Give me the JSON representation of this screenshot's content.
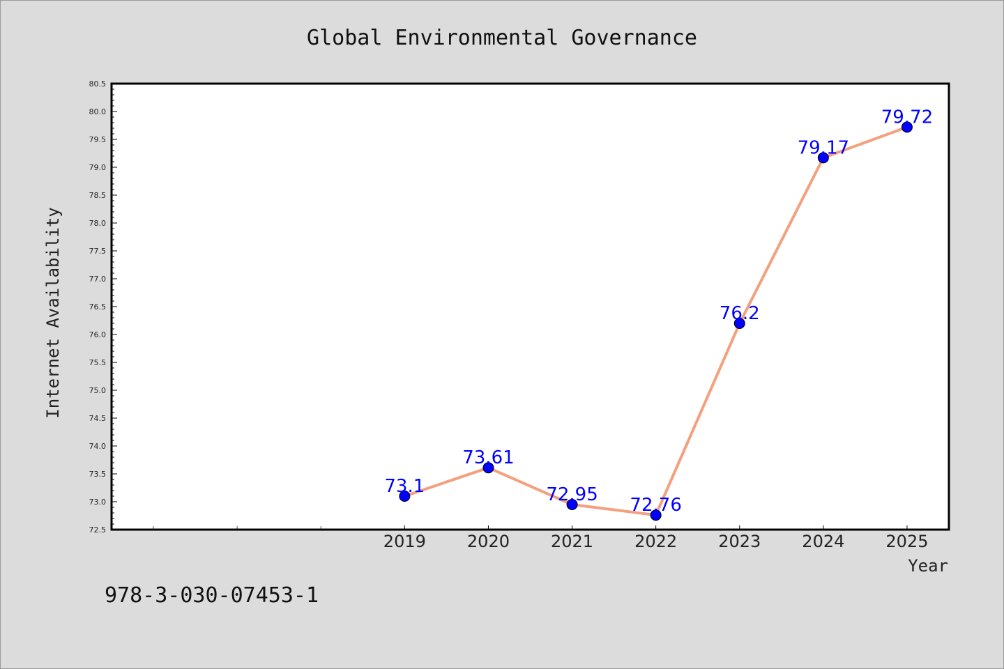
{
  "chart_data": {
    "type": "line",
    "title": "Global Environmental Governance",
    "xlabel": "Year",
    "ylabel": "Internet Availability",
    "x": [
      "2019",
      "2020",
      "2021",
      "2022",
      "2023",
      "2024",
      "2025"
    ],
    "series": [
      {
        "values": [
          73.1,
          73.61,
          72.95,
          72.76,
          76.2,
          79.17,
          79.72
        ],
        "labels": [
          "73.1",
          "73.61",
          "72.95",
          "72.76",
          "76.2",
          "79.17",
          "79.72"
        ],
        "line_color": "#f4a07e",
        "marker_color": "#0000ff"
      }
    ],
    "ylim": [
      72.5,
      80.5
    ],
    "yticks": [
      "72.5",
      "73.0",
      "73.5",
      "74.0",
      "74.5",
      "75.0",
      "75.5",
      "76.0",
      "76.5",
      "77.0",
      "77.5",
      "78.0",
      "78.5",
      "79.0",
      "79.5",
      "80.0",
      "80.5"
    ],
    "grid": false,
    "legend": "none"
  },
  "footer": {
    "isbn": "978-3-030-07453-1"
  },
  "colors": {
    "background": "#dcdcdc",
    "plot_area": "#ffffff",
    "line": "#f4a07e",
    "marker": "#0000ff",
    "data_label": "#0000ff"
  }
}
